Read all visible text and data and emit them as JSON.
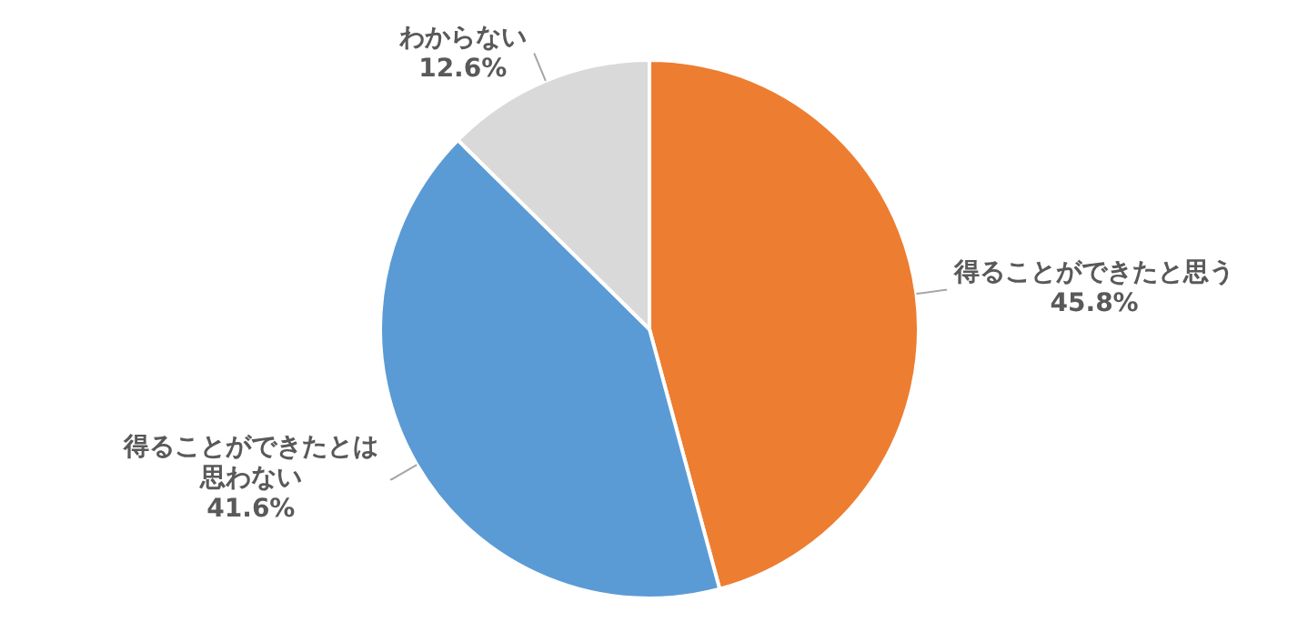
{
  "chart_data": {
    "type": "pie",
    "categories": [
      "得ることができたと思う",
      "得ることができたとは思わない",
      "わからない"
    ],
    "values": [
      45.8,
      41.6,
      12.6
    ],
    "value_labels": [
      "45.8%",
      "41.6%",
      "12.6%"
    ],
    "colors": [
      "#ed7d31",
      "#5b9bd5",
      "#d9d9d9"
    ],
    "legend": false
  }
}
